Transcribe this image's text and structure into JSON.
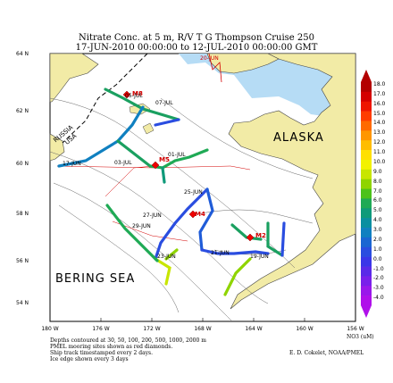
{
  "title_line1": "Nitrate Conc. at 5 m, R/V T G  Thompson Cruise 250",
  "title_line2": "17-JUN-2010 00:00:00 to 12-JUL-2010 00:00:00 GMT",
  "map": {
    "lat_labels": [
      "64 N",
      "62 N",
      "60 N",
      "58 N",
      "56 N",
      "54 N"
    ],
    "lon_labels": [
      "180 W",
      "176 W",
      "172 W",
      "168 W",
      "164 W",
      "160 W",
      "156 W"
    ],
    "region_labels": {
      "alaska": "ALASKA",
      "bering": "BERING SEA",
      "russia": "RUSSIA",
      "usa": "USA"
    },
    "moorings": [
      "M8",
      "M5",
      "M4",
      "M2"
    ],
    "date_labels": [
      "20-JUN",
      "07-JUL",
      "03-JUL",
      "01-JUL",
      "05-JUL",
      "25-JUN",
      "29-JUN",
      "23-JUN",
      "21-JUN",
      "19-JUN",
      "17-JUN",
      "27-JUN"
    ]
  },
  "colorbar": {
    "labels": [
      "18.0",
      "17.0",
      "16.0",
      "15.0",
      "14.0",
      "13.0",
      "12.0",
      "11.0",
      "10.0",
      "9.0",
      "8.0",
      "7.0",
      "6.0",
      "5.0",
      "4.0",
      "3.0",
      "2.0",
      "1.0",
      "0.0",
      "-1.0",
      "-2.0",
      "-3.0",
      "-4.0"
    ],
    "colors": [
      "#b30000",
      "#d40000",
      "#ee1500",
      "#ff3c00",
      "#ff6a00",
      "#ff9600",
      "#ffbd00",
      "#ffe000",
      "#f2f200",
      "#c8e600",
      "#8fd400",
      "#4cc21a",
      "#1faa55",
      "#0f9a7a",
      "#0a8fa0",
      "#1080c0",
      "#1a66d2",
      "#2a4de0",
      "#3a36e8",
      "#5a2ae8",
      "#7a20ea",
      "#9a18ea",
      "#b010ea"
    ],
    "unit_label": "NO3 (uM)"
  },
  "footer": {
    "left": [
      "Depths contoured at 30, 50, 100, 200, 500, 1000, 2000 m",
      "PMEL mooring sites shown as red diamonds.",
      "Ship track timestamped every 2 days.",
      "Ice edge shown every 3 days"
    ],
    "credit": "E. D. Cokelet, NOAA/PMEL"
  }
}
